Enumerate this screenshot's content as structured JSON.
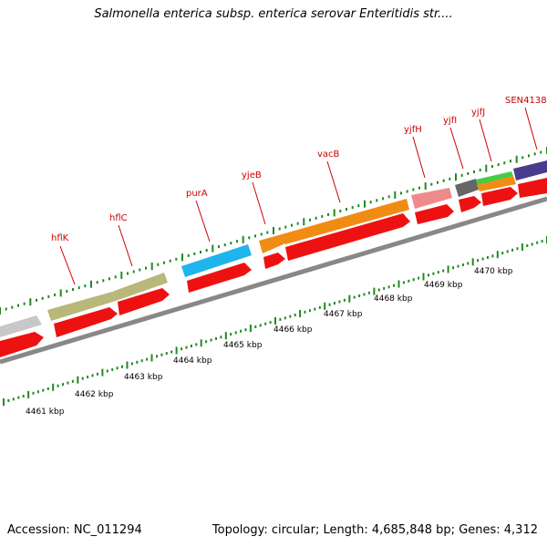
{
  "header": {
    "title": "Salmonella enterica subsp. enterica serovar Enteritidis str...."
  },
  "footer": {
    "accession": "Accession: NC_011294",
    "topology": "Topology: circular;",
    "length": "Length: 4,685,848 bp;",
    "genes": "Genes: 4,312"
  },
  "colors": {
    "backbone": "#888888",
    "cds": "#ee1111",
    "tick": "#228822",
    "label": "#cc0000"
  },
  "map": {
    "scale_labels": [
      "4461 kbp",
      "4462 kbp",
      "4463 kbp",
      "4464 kbp",
      "4465 kbp",
      "4466 kbp",
      "4467 kbp",
      "4468 kbp",
      "4469 kbp",
      "4470 kbp"
    ],
    "gene_labels": [
      "hflK",
      "hflC",
      "purA",
      "yjeB",
      "vacB",
      "yjfH",
      "yjfI",
      "yjfJ",
      "SEN4138"
    ],
    "cog_bands": [
      {
        "color": "#c8c8c8"
      },
      {
        "color": "#b8b87a"
      },
      {
        "color": "#b8b87a"
      },
      {
        "color": "#1eb4ee"
      },
      {
        "color": "#f08c14"
      },
      {
        "color": "#f08c14"
      },
      {
        "color": "#ef8a8a"
      },
      {
        "color": "#666666"
      },
      {
        "color": "#44cc44"
      },
      {
        "color": "#f08c14"
      },
      {
        "color": "#4a3c8c"
      }
    ]
  }
}
